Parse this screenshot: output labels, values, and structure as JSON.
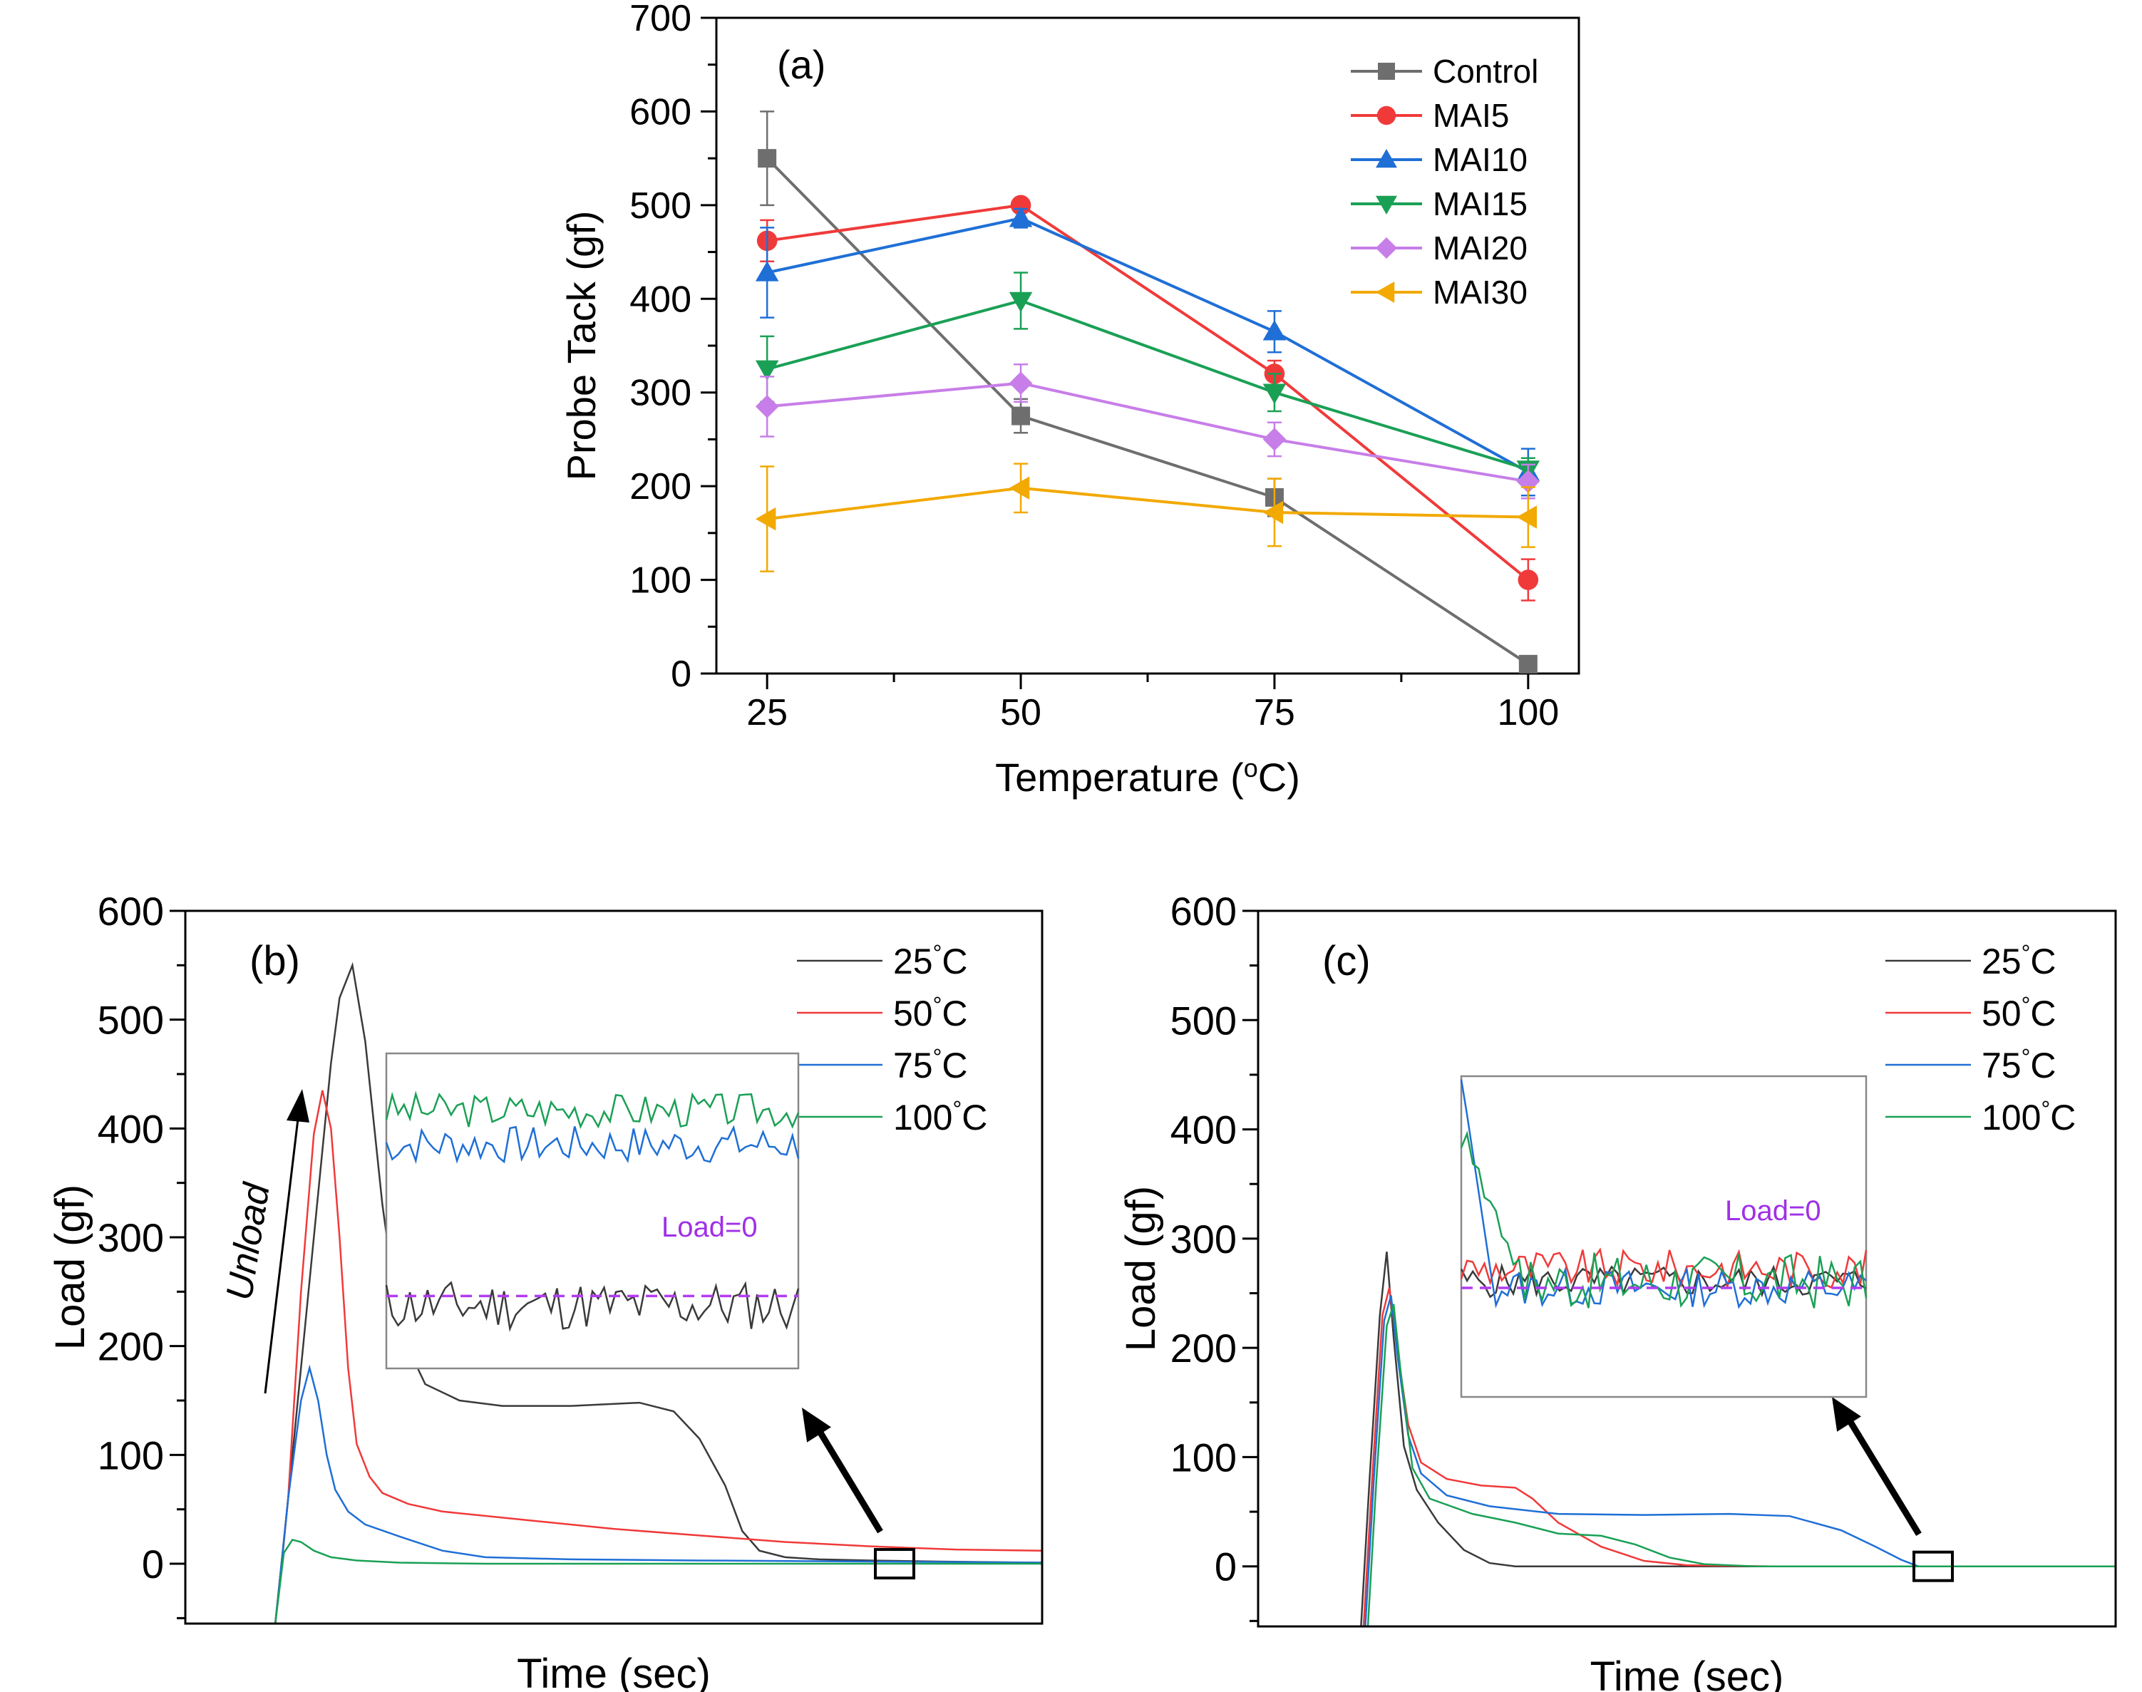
{
  "chart_data": [
    {
      "type": "line",
      "panel_label": "(a)",
      "xlabel": "Temperature (",
      "xlabel_sup": "o",
      "xlabel_end": "C)",
      "ylabel": "Probe Tack (gf)",
      "x": [
        25,
        50,
        75,
        100
      ],
      "x_tick_labels": [
        "25",
        "50",
        "75",
        "100"
      ],
      "xlim": [
        20,
        105
      ],
      "ylim": [
        0,
        700
      ],
      "y_ticks": [
        0,
        100,
        200,
        300,
        400,
        500,
        600,
        700
      ],
      "y_tick_labels": [
        "0",
        "100",
        "200",
        "300",
        "400",
        "500",
        "600",
        "700"
      ],
      "legend_position": "top-right",
      "series": [
        {
          "name": "Control",
          "color": "#6e6e6e",
          "marker": "square",
          "values": [
            550,
            275,
            188,
            10
          ],
          "err": [
            50,
            18,
            20,
            8
          ]
        },
        {
          "name": "MAI5",
          "color": "#f03a3a",
          "marker": "circle",
          "values": [
            462,
            500,
            320,
            100
          ],
          "err": [
            22,
            6,
            14,
            22
          ]
        },
        {
          "name": "MAI10",
          "color": "#1f6fd6",
          "marker": "triangle-up",
          "values": [
            428,
            486,
            365,
            215
          ],
          "err": [
            48,
            10,
            22,
            25
          ]
        },
        {
          "name": "MAI15",
          "color": "#1aa055",
          "marker": "triangle-down",
          "values": [
            325,
            398,
            300,
            218
          ],
          "err": [
            35,
            30,
            20,
            12
          ]
        },
        {
          "name": "MAI20",
          "color": "#c77ee8",
          "marker": "diamond",
          "values": [
            285,
            310,
            250,
            205
          ],
          "err": [
            32,
            20,
            18,
            18
          ]
        },
        {
          "name": "MAI30",
          "color": "#f2a900",
          "marker": "triangle-left",
          "values": [
            165,
            198,
            172,
            167
          ],
          "err": [
            56,
            26,
            36,
            32
          ]
        }
      ]
    },
    {
      "type": "line",
      "panel_label": "(b)",
      "xlabel": "Time (sec)",
      "ylabel": "Load (gf)",
      "x_units": "arbitrary time (0-100, no ticks shown)",
      "xlim": [
        0,
        100
      ],
      "ylim": [
        -55,
        600
      ],
      "y_ticks": [
        0,
        100,
        200,
        300,
        400,
        500,
        600
      ],
      "y_tick_labels": [
        "0",
        "100",
        "200",
        "300",
        "400",
        "500",
        "600"
      ],
      "legend_position": "top-right",
      "arrow_label": "Unload",
      "inset_label": "Load=0",
      "series": [
        {
          "name": "25",
          "temp_suffix": "°C",
          "color": "#3a3a3a",
          "x": [
            10.5,
            11.5,
            13,
            15,
            17,
            18,
            19.5,
            21,
            23,
            25,
            28,
            32,
            37,
            45,
            53,
            57,
            60,
            63,
            65,
            67,
            70,
            74,
            80,
            88,
            100
          ],
          "values": [
            -55,
            20,
            140,
            300,
            460,
            520,
            550,
            480,
            330,
            215,
            165,
            150,
            145,
            145,
            148,
            140,
            115,
            72,
            30,
            12,
            6,
            4,
            3,
            2,
            1
          ]
        },
        {
          "name": "50",
          "temp_suffix": "°C",
          "color": "#f03a3a",
          "x": [
            10.5,
            12,
            13.5,
            15,
            16,
            17,
            18,
            19,
            20,
            21.5,
            23,
            26,
            30,
            40,
            50,
            60,
            70,
            80,
            90,
            100
          ],
          "values": [
            -55,
            60,
            250,
            395,
            435,
            400,
            300,
            180,
            110,
            80,
            65,
            55,
            48,
            40,
            32,
            26,
            20,
            16,
            13,
            12
          ]
        },
        {
          "name": "75",
          "temp_suffix": "°C",
          "color": "#1f6fd6",
          "x": [
            10.5,
            12,
            13.5,
            14.5,
            15.5,
            16.5,
            17.5,
            19,
            21,
            25,
            30,
            35,
            45,
            60,
            80,
            100
          ],
          "values": [
            -55,
            60,
            150,
            180,
            150,
            100,
            68,
            48,
            36,
            25,
            12,
            6,
            4,
            3,
            2,
            1
          ]
        },
        {
          "name": "100",
          "temp_suffix": "°C",
          "color": "#1aa055",
          "x": [
            10.5,
            11.5,
            12.5,
            13.5,
            15,
            17,
            20,
            25,
            35,
            50,
            70,
            100
          ],
          "values": [
            -55,
            10,
            22,
            20,
            12,
            6,
            3,
            1,
            0,
            0,
            0,
            0
          ]
        }
      ],
      "inset_traces": [
        {
          "name": "100",
          "color": "#1aa055",
          "level": 0.82,
          "noise": 0.055,
          "seed": 3
        },
        {
          "name": "75",
          "color": "#1f6fd6",
          "level": 0.71,
          "noise": 0.06,
          "seed": 7
        },
        {
          "name": "25",
          "color": "#3a3a3a",
          "level": 0.2,
          "noise": 0.08,
          "seed": 11
        }
      ],
      "inset_zero_level": 0.23
    },
    {
      "type": "line",
      "panel_label": "(c)",
      "xlabel": "Time (sec)",
      "ylabel": "Load (gf)",
      "x_units": "arbitrary time (0-100, no ticks shown)",
      "xlim": [
        0,
        100
      ],
      "ylim": [
        -55,
        600
      ],
      "y_ticks": [
        0,
        100,
        200,
        300,
        400,
        500,
        600
      ],
      "y_tick_labels": [
        "0",
        "100",
        "200",
        "300",
        "400",
        "500",
        "600"
      ],
      "legend_position": "top-right",
      "inset_label": "Load=0",
      "series": [
        {
          "name": "25",
          "temp_suffix": "°C",
          "color": "#3a3a3a",
          "x": [
            12,
            13,
            14.2,
            15,
            15.8,
            17,
            18.5,
            21,
            24,
            27,
            30,
            40,
            60,
            100
          ],
          "values": [
            -55,
            80,
            230,
            288,
            210,
            110,
            70,
            40,
            15,
            3,
            0,
            0,
            0,
            0
          ]
        },
        {
          "name": "50",
          "temp_suffix": "°C",
          "color": "#f03a3a",
          "x": [
            12.3,
            13.3,
            14.5,
            15.3,
            16.2,
            17.5,
            19,
            22,
            26,
            30,
            32,
            35,
            40,
            45,
            50,
            60,
            100
          ],
          "values": [
            -55,
            80,
            230,
            255,
            200,
            130,
            95,
            80,
            74,
            72,
            62,
            40,
            18,
            5,
            1,
            0,
            0
          ]
        },
        {
          "name": "75",
          "temp_suffix": "°C",
          "color": "#1f6fd6",
          "x": [
            12.5,
            13.5,
            14.7,
            15.5,
            16.3,
            17.5,
            19,
            22,
            27,
            35,
            45,
            55,
            62,
            68,
            72,
            75,
            77,
            100
          ],
          "values": [
            -55,
            80,
            225,
            248,
            190,
            120,
            85,
            65,
            55,
            48,
            47,
            48,
            46,
            33,
            18,
            6,
            0,
            0
          ]
        },
        {
          "name": "100",
          "temp_suffix": "°C",
          "color": "#1aa055",
          "x": [
            12.8,
            13.8,
            15,
            15.8,
            16.6,
            18,
            20,
            25,
            30,
            35,
            40,
            44,
            48,
            52,
            58,
            100
          ],
          "values": [
            -55,
            80,
            220,
            240,
            180,
            90,
            62,
            48,
            40,
            30,
            28,
            20,
            8,
            2,
            0,
            0
          ]
        }
      ],
      "inset_traces": [
        {
          "name": "25",
          "color": "#3a3a3a",
          "level": 0.36,
          "noise": 0.05,
          "seed": 5
        },
        {
          "name": "50",
          "color": "#f03a3a",
          "level": 0.4,
          "noise": 0.06,
          "seed": 9
        },
        {
          "name": "75",
          "color": "#1f6fd6",
          "level": 0.34,
          "noise": 0.06,
          "seed": 13
        },
        {
          "name": "100",
          "color": "#1aa055",
          "level": 0.36,
          "noise": 0.09,
          "seed": 17
        }
      ],
      "inset_zero_level": 0.34
    }
  ]
}
